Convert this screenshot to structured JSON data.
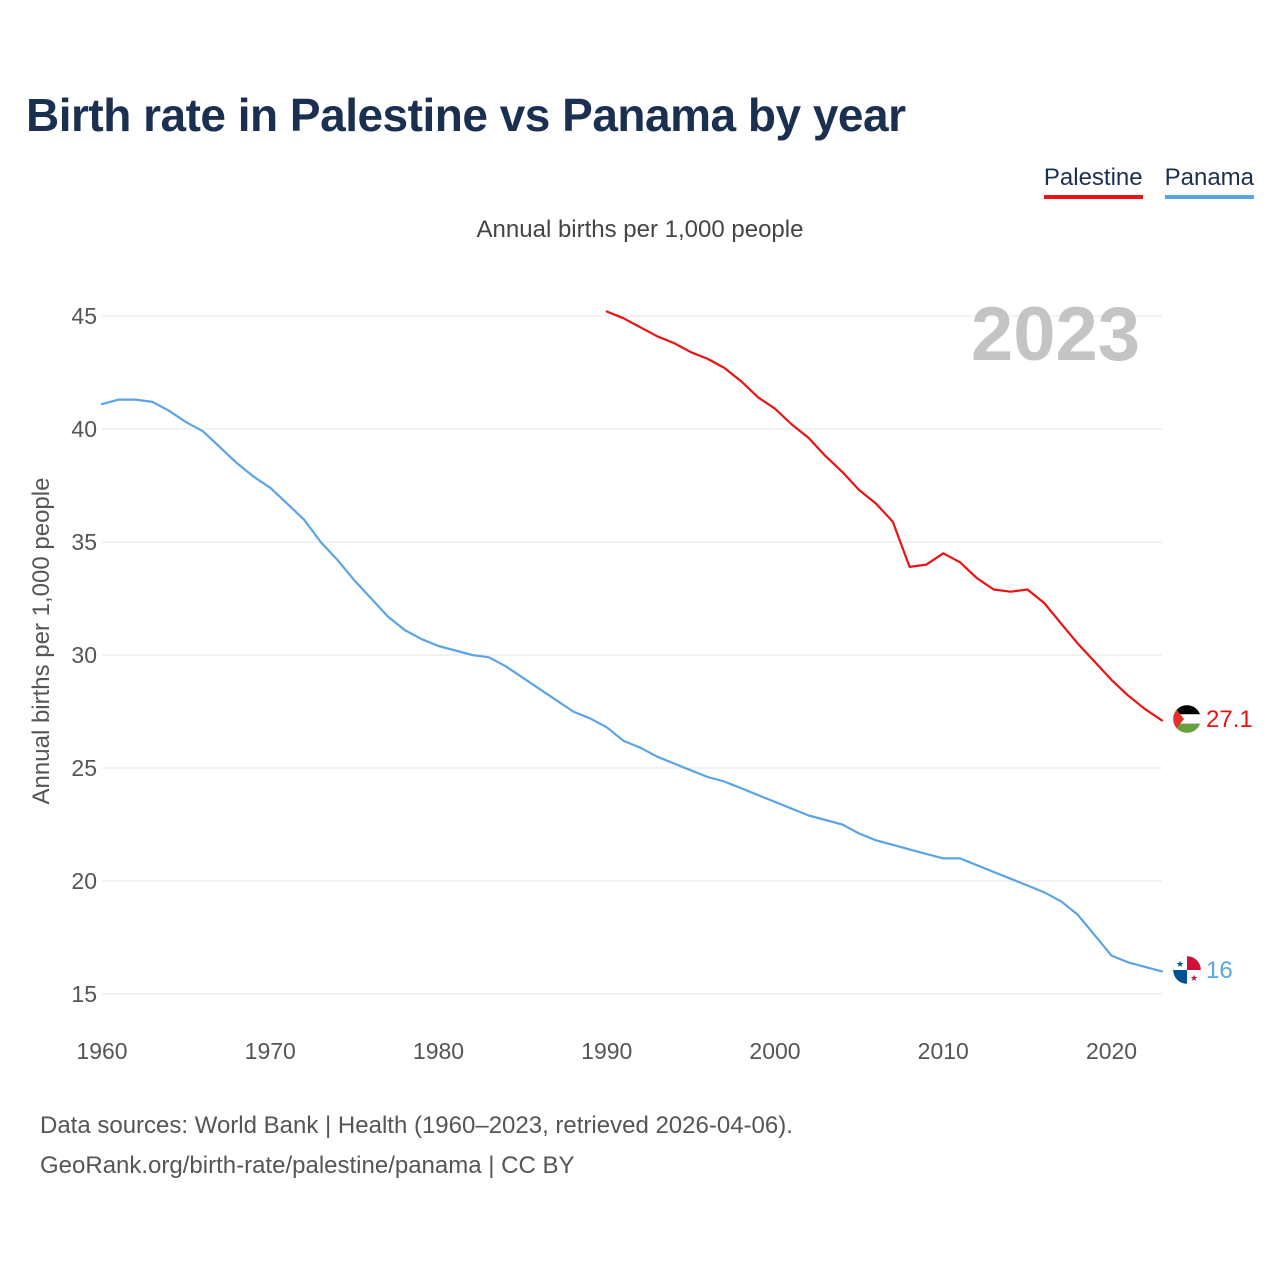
{
  "title": "Birth rate in Palestine vs Panama by year",
  "legend": [
    {
      "label": "Palestine",
      "color": "#ee1111"
    },
    {
      "label": "Panama",
      "color": "#5aa4e6"
    }
  ],
  "footer": {
    "line1": "Data sources: World Bank | Health (1960–2023, retrieved 2026-04-06).",
    "line2": "GeoRank.org/birth-rate/palestine/panama | CC BY"
  },
  "chart_data": {
    "type": "line",
    "title": "Birth rate in Palestine vs Panama by year",
    "subtitle": "Annual births per 1,000 people",
    "ylabel": "Annual births per 1,000 people",
    "xlabel": "",
    "year_watermark": "2023",
    "xlim": [
      1960,
      2023
    ],
    "ylim": [
      15,
      45
    ],
    "x_ticks": [
      1960,
      1970,
      1980,
      1990,
      2000,
      2010,
      2020
    ],
    "y_ticks": [
      15,
      20,
      25,
      30,
      35,
      40,
      45
    ],
    "grid": true,
    "legend_position": "top-right",
    "series": [
      {
        "name": "Palestine",
        "color": "#ee1111",
        "end_label": "27.1",
        "flag": "palestine",
        "x": [
          1990,
          1991,
          1992,
          1993,
          1994,
          1995,
          1996,
          1997,
          1998,
          1999,
          2000,
          2001,
          2002,
          2003,
          2004,
          2005,
          2006,
          2007,
          2008,
          2009,
          2010,
          2011,
          2012,
          2013,
          2014,
          2015,
          2016,
          2017,
          2018,
          2019,
          2020,
          2021,
          2022,
          2023
        ],
        "values": [
          45.2,
          44.9,
          44.5,
          44.1,
          43.8,
          43.4,
          43.1,
          42.7,
          42.1,
          41.4,
          40.9,
          40.2,
          39.6,
          38.8,
          38.1,
          37.3,
          36.7,
          35.9,
          33.9,
          34.0,
          34.5,
          34.1,
          33.4,
          32.9,
          32.8,
          32.9,
          32.3,
          31.4,
          30.5,
          29.7,
          28.9,
          28.2,
          27.6,
          27.1
        ]
      },
      {
        "name": "Panama",
        "color": "#5aa4e6",
        "end_label": "16",
        "flag": "panama",
        "x": [
          1960,
          1961,
          1962,
          1963,
          1964,
          1965,
          1966,
          1967,
          1968,
          1969,
          1970,
          1971,
          1972,
          1973,
          1974,
          1975,
          1976,
          1977,
          1978,
          1979,
          1980,
          1981,
          1982,
          1983,
          1984,
          1985,
          1986,
          1987,
          1988,
          1989,
          1990,
          1991,
          1992,
          1993,
          1994,
          1995,
          1996,
          1997,
          1998,
          1999,
          2000,
          2001,
          2002,
          2003,
          2004,
          2005,
          2006,
          2007,
          2008,
          2009,
          2010,
          2011,
          2012,
          2013,
          2014,
          2015,
          2016,
          2017,
          2018,
          2019,
          2020,
          2021,
          2022,
          2023
        ],
        "values": [
          41.1,
          41.3,
          41.3,
          41.2,
          40.8,
          40.3,
          39.9,
          39.2,
          38.5,
          37.9,
          37.4,
          36.7,
          36.0,
          35.0,
          34.2,
          33.3,
          32.5,
          31.7,
          31.1,
          30.7,
          30.4,
          30.2,
          30.0,
          29.9,
          29.5,
          29.0,
          28.5,
          28.0,
          27.5,
          27.2,
          26.8,
          26.2,
          25.9,
          25.5,
          25.2,
          24.9,
          24.6,
          24.4,
          24.1,
          23.8,
          23.5,
          23.2,
          22.9,
          22.7,
          22.5,
          22.1,
          21.8,
          21.6,
          21.4,
          21.2,
          21.0,
          21.0,
          20.7,
          20.4,
          20.1,
          19.8,
          19.5,
          19.1,
          18.5,
          17.6,
          16.7,
          16.4,
          16.2,
          16.0
        ]
      }
    ]
  }
}
